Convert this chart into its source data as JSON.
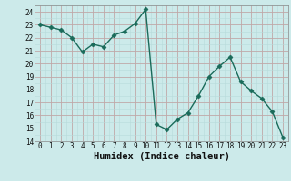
{
  "x": [
    0,
    1,
    2,
    3,
    4,
    5,
    6,
    7,
    8,
    9,
    10,
    11,
    12,
    13,
    14,
    15,
    16,
    17,
    18,
    19,
    20,
    21,
    22,
    23
  ],
  "y": [
    23.0,
    22.8,
    22.6,
    22.0,
    20.9,
    21.5,
    21.3,
    22.2,
    22.5,
    23.1,
    24.2,
    15.3,
    14.9,
    15.7,
    16.2,
    17.5,
    19.0,
    19.8,
    20.5,
    18.6,
    17.9,
    17.3,
    16.3,
    14.3
  ],
  "line_color": "#1a6b5a",
  "marker": "D",
  "markersize": 2.5,
  "linewidth": 1.0,
  "bg_color": "#cceaea",
  "grid_major_color": "#c0a8a8",
  "grid_minor_color": "#b8dada",
  "xlabel": "Humidex (Indice chaleur)",
  "xlim": [
    -0.5,
    23.5
  ],
  "ylim": [
    14,
    24.5
  ],
  "yticks": [
    14,
    15,
    16,
    17,
    18,
    19,
    20,
    21,
    22,
    23,
    24
  ],
  "xticks": [
    0,
    1,
    2,
    3,
    4,
    5,
    6,
    7,
    8,
    9,
    10,
    11,
    12,
    13,
    14,
    15,
    16,
    17,
    18,
    19,
    20,
    21,
    22,
    23
  ],
  "tick_fontsize": 5.5,
  "xlabel_fontsize": 7.5,
  "tick_color": "#111111"
}
